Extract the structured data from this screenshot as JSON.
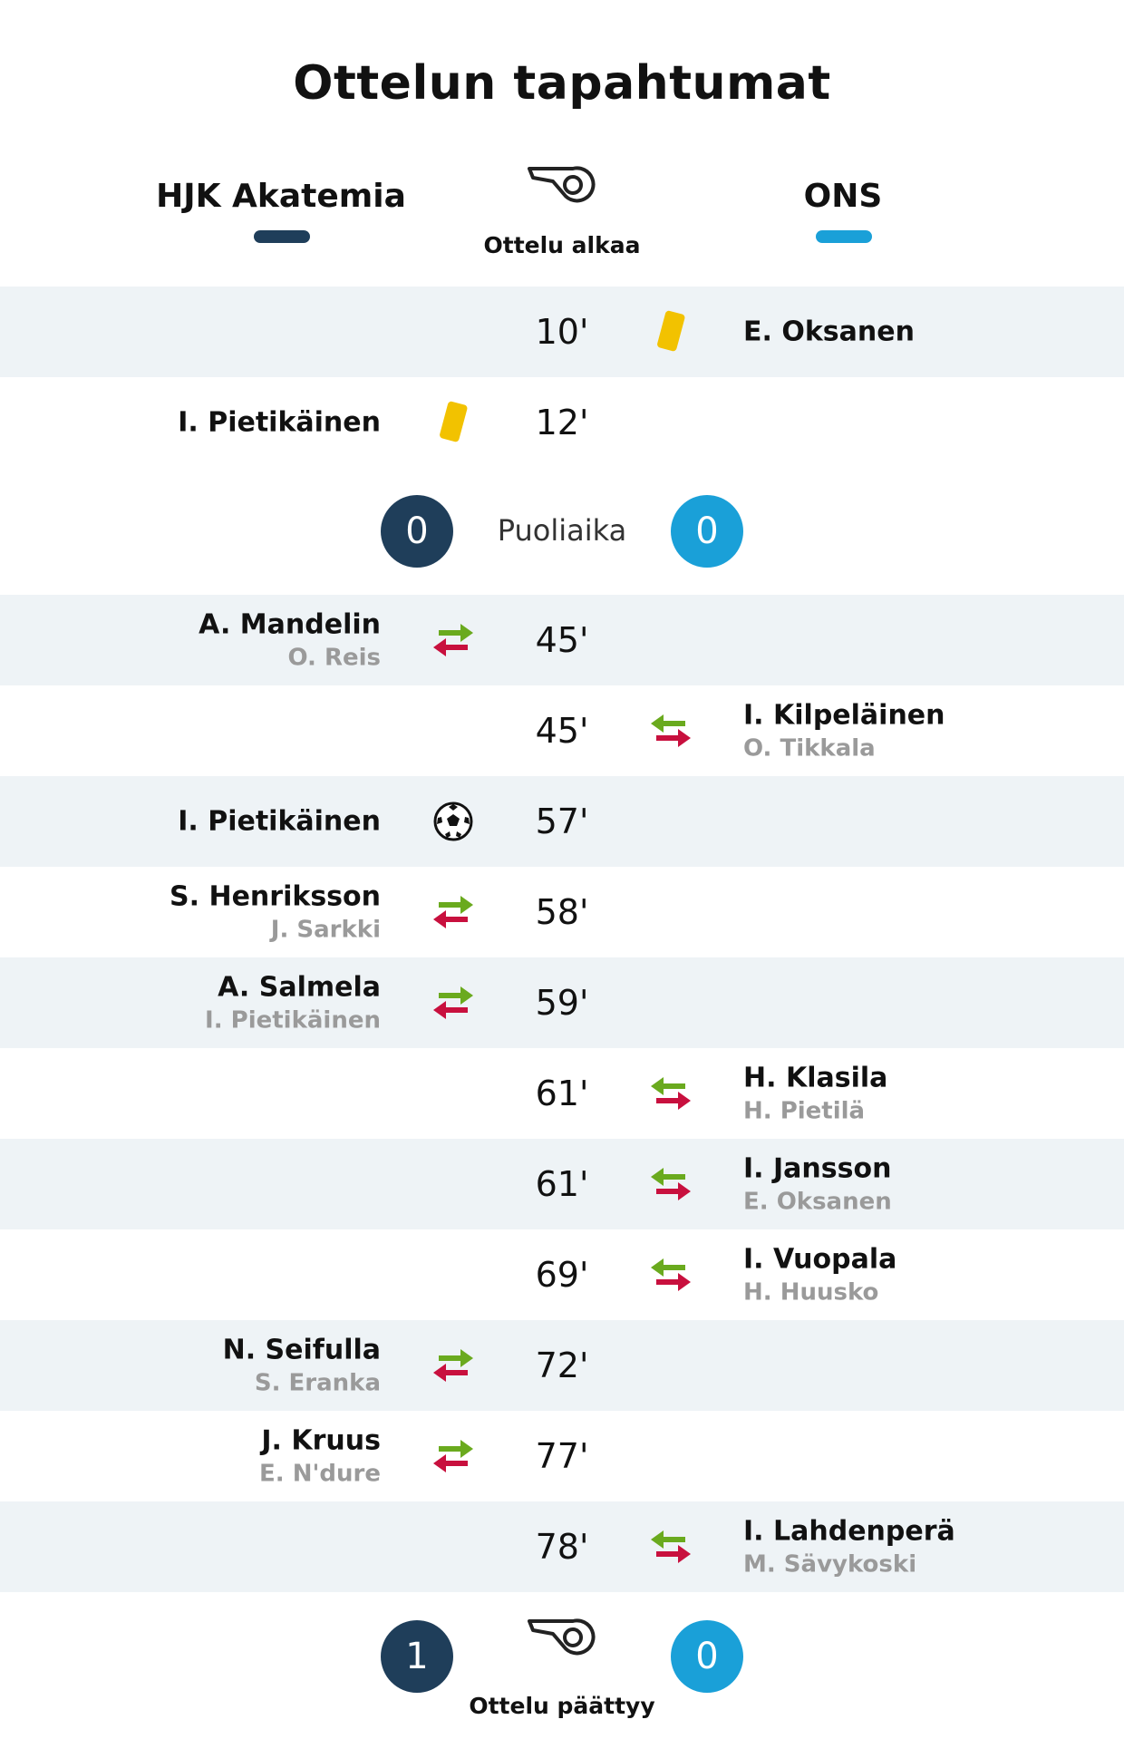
{
  "header": {
    "title": "Ottelun tapahtumat",
    "home_team": "HJK Akatemia",
    "away_team": "ONS",
    "start_label": "Ottelu alkaa",
    "end_label": "Ottelu päättyy"
  },
  "colors": {
    "home": "#1f3e5a",
    "away": "#1aa0d8",
    "row_shade": "#eef3f6",
    "card": "#f2c200",
    "sub_in": "#6aaa1e",
    "sub_out": "#c8103e"
  },
  "halftime": {
    "label": "Puoliaika",
    "home_score": "0",
    "away_score": "0"
  },
  "fulltime": {
    "home_score": "1",
    "away_score": "0"
  },
  "events": [
    {
      "minute": "10'",
      "side": "away",
      "type": "yellow-card",
      "player": "E. Oksanen",
      "sub": ""
    },
    {
      "minute": "12'",
      "side": "home",
      "type": "yellow-card",
      "player": "I. Pietikäinen",
      "sub": ""
    },
    {
      "minute": "45'",
      "side": "home",
      "type": "substitution",
      "player": "A. Mandelin",
      "sub": "O. Reis"
    },
    {
      "minute": "45'",
      "side": "away",
      "type": "substitution",
      "player": "I. Kilpeläinen",
      "sub": "O. Tikkala"
    },
    {
      "minute": "57'",
      "side": "home",
      "type": "goal",
      "player": "I. Pietikäinen",
      "sub": ""
    },
    {
      "minute": "58'",
      "side": "home",
      "type": "substitution",
      "player": "S. Henriksson",
      "sub": "J. Sarkki"
    },
    {
      "minute": "59'",
      "side": "home",
      "type": "substitution",
      "player": "A. Salmela",
      "sub": "I. Pietikäinen"
    },
    {
      "minute": "61'",
      "side": "away",
      "type": "substitution",
      "player": "H. Klasila",
      "sub": "H. Pietilä"
    },
    {
      "minute": "61'",
      "side": "away",
      "type": "substitution",
      "player": "I. Jansson",
      "sub": "E. Oksanen"
    },
    {
      "minute": "69'",
      "side": "away",
      "type": "substitution",
      "player": "I. Vuopala",
      "sub": "H. Huusko"
    },
    {
      "minute": "72'",
      "side": "home",
      "type": "substitution",
      "player": "N. Seifulla",
      "sub": "S. Eranka"
    },
    {
      "minute": "77'",
      "side": "home",
      "type": "substitution",
      "player": "J. Kruus",
      "sub": "E. N'dure"
    },
    {
      "minute": "78'",
      "side": "away",
      "type": "substitution",
      "player": "I. Lahdenperä",
      "sub": "M. Sävykoski"
    }
  ]
}
